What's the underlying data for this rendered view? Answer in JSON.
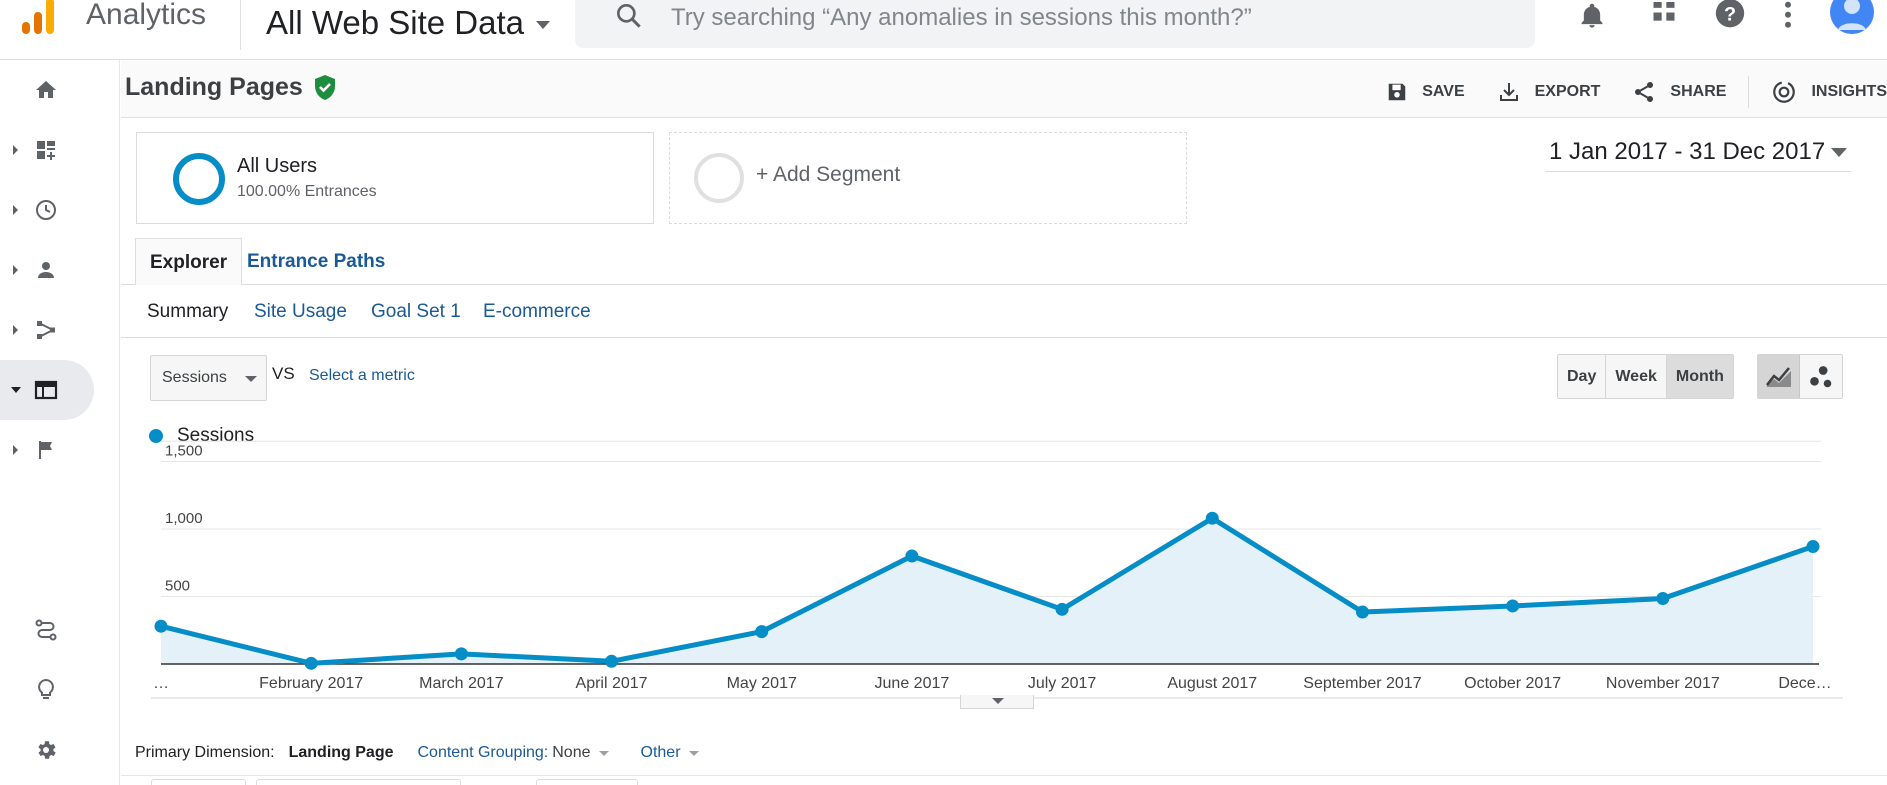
{
  "topbar": {
    "app_name": "Analytics",
    "property": "All Web Site Data",
    "search_placeholder": "Try searching “Any anomalies in sessions this month?”",
    "icons": [
      "notifications-icon",
      "apps-grid-icon",
      "help-icon",
      "more-vert-icon",
      "account-avatar-icon"
    ]
  },
  "leftnav": {
    "items": [
      {
        "name": "home-icon"
      },
      {
        "name": "customization-icon"
      },
      {
        "name": "realtime-icon"
      },
      {
        "name": "audience-icon"
      },
      {
        "name": "acquisition-icon"
      },
      {
        "name": "behavior-icon",
        "active": true
      },
      {
        "name": "conversions-icon"
      }
    ],
    "bottom_items": [
      {
        "name": "attribution-icon"
      },
      {
        "name": "discover-icon"
      },
      {
        "name": "admin-gear-icon"
      }
    ]
  },
  "header": {
    "title": "Landing Pages",
    "actions": {
      "save": "SAVE",
      "export": "EXPORT",
      "share": "SHARE",
      "insights": "INSIGHTS"
    }
  },
  "segments": {
    "active": {
      "title": "All Users",
      "sub": "100.00% Entrances"
    },
    "add": "+ Add Segment"
  },
  "date_range": "1 Jan 2017 - 31 Dec 2017",
  "tabs": {
    "explorer": "Explorer",
    "entrance_paths": "Entrance Paths"
  },
  "subtabs": {
    "summary": "Summary",
    "site_usage": "Site Usage",
    "goal_set": "Goal Set 1",
    "ecommerce": "E-commerce"
  },
  "metric": {
    "selected": "Sessions",
    "vs": "VS",
    "select": "Select a metric"
  },
  "granularity": {
    "day": "Day",
    "week": "Week",
    "month": "Month",
    "active": "Month"
  },
  "legend": {
    "series": "Sessions"
  },
  "colors": {
    "series": "#058dc7",
    "fill": "#e5f1f8",
    "link": "#1a5a96"
  },
  "chart_data": {
    "type": "area",
    "categories": [
      "…",
      "February 2017",
      "March 2017",
      "April 2017",
      "May 2017",
      "June 2017",
      "July 2017",
      "August 2017",
      "September 2017",
      "October 2017",
      "November 2017",
      "Dece…"
    ],
    "series": [
      {
        "name": "Sessions",
        "values": [
          280,
          5,
          75,
          20,
          240,
          800,
          405,
          1080,
          385,
          430,
          485,
          870
        ]
      }
    ],
    "y_ticks": [
      "500",
      "1,000",
      "1,500"
    ],
    "ylim": [
      0,
      1600
    ],
    "grid": true
  },
  "dimensions": {
    "label": "Primary Dimension:",
    "active": "Landing Page",
    "content_grouping_label": "Content Grouping:",
    "content_grouping_value": "None",
    "other": "Other"
  }
}
